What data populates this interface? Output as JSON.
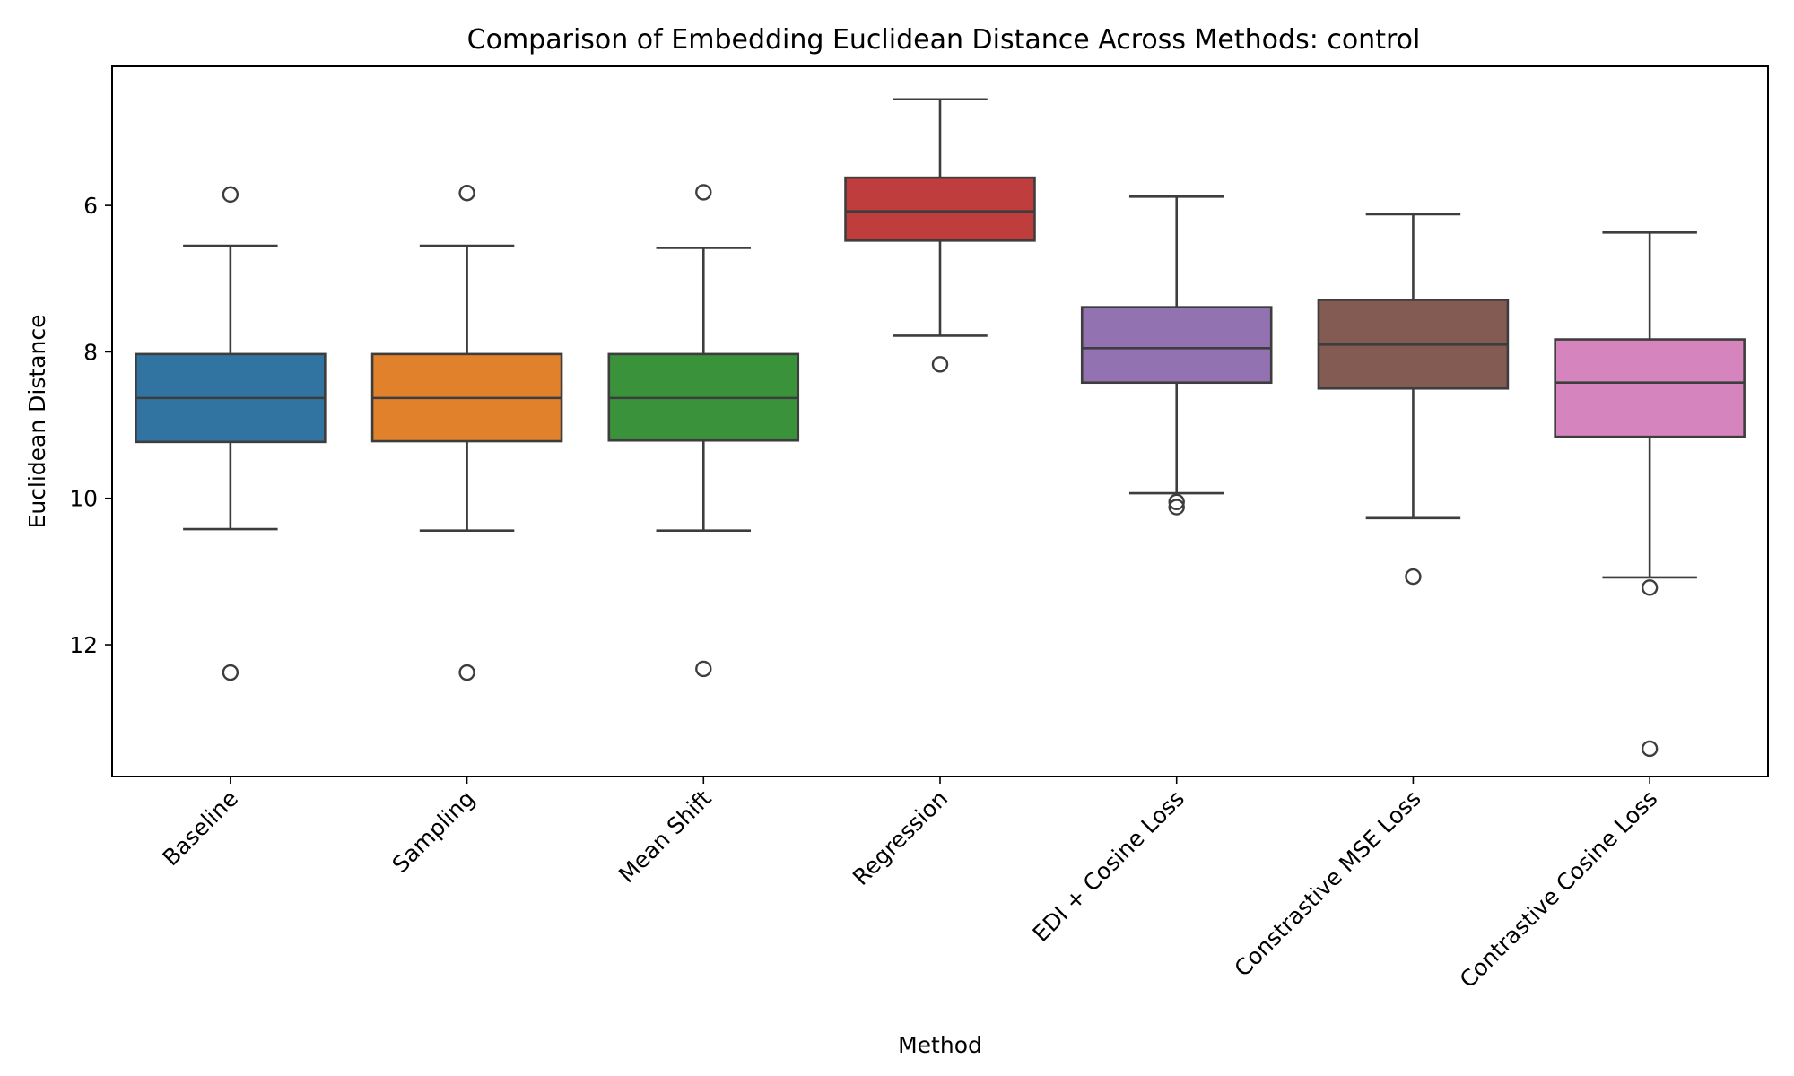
{
  "chart_data": {
    "type": "box",
    "title": "Comparison of Embedding Euclidean Distance Across Methods: control",
    "xlabel": "Method",
    "ylabel": "Euclidean Distance",
    "y_inverted": true,
    "ylim": [
      4.1,
      13.8
    ],
    "yticks": [
      6,
      8,
      10,
      12
    ],
    "grid": false,
    "categories": [
      "Baseline",
      "Sampling",
      "Mean Shift",
      "Regression",
      "EDI + Cosine Loss",
      "Constrastive MSE Loss",
      "Contrastive Cosine Loss"
    ],
    "series": [
      {
        "name": "Baseline",
        "color": "#3274a1",
        "whisker_low": 6.55,
        "q1": 8.03,
        "median": 8.63,
        "q3": 9.23,
        "whisker_high": 10.42,
        "fliers": [
          5.85,
          12.38
        ]
      },
      {
        "name": "Sampling",
        "color": "#e1812c",
        "whisker_low": 6.55,
        "q1": 8.03,
        "median": 8.63,
        "q3": 9.22,
        "whisker_high": 10.44,
        "fliers": [
          5.83,
          12.38
        ]
      },
      {
        "name": "Mean Shift",
        "color": "#3a923a",
        "whisker_low": 6.58,
        "q1": 8.03,
        "median": 8.63,
        "q3": 9.21,
        "whisker_high": 10.44,
        "fliers": [
          5.82,
          12.33
        ]
      },
      {
        "name": "Regression",
        "color": "#c03d3e",
        "whisker_low": 4.55,
        "q1": 5.62,
        "median": 6.08,
        "q3": 6.48,
        "whisker_high": 7.78,
        "fliers": [
          8.17
        ]
      },
      {
        "name": "EDI + Cosine Loss",
        "color": "#9372b2",
        "whisker_low": 5.88,
        "q1": 7.39,
        "median": 7.95,
        "q3": 8.42,
        "whisker_high": 9.93,
        "fliers": [
          10.05,
          10.12
        ]
      },
      {
        "name": "Constrastive MSE Loss",
        "color": "#845b53",
        "whisker_low": 6.12,
        "q1": 7.29,
        "median": 7.9,
        "q3": 8.5,
        "whisker_high": 10.27,
        "fliers": [
          11.07
        ]
      },
      {
        "name": "Contrastive Cosine Loss",
        "color": "#d684bd",
        "whisker_low": 6.37,
        "q1": 7.83,
        "median": 8.42,
        "q3": 9.16,
        "whisker_high": 11.08,
        "fliers": [
          11.22,
          13.42
        ]
      }
    ]
  }
}
